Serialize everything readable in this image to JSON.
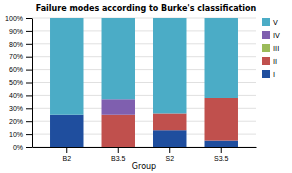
{
  "chart_data": {
    "type": "bar",
    "stacked": true,
    "title": "Failure modes according to Burke's classification",
    "x_label": "Group",
    "categories": [
      "B2",
      "B3.5",
      "S2",
      "S3.5"
    ],
    "series": [
      {
        "name": "I",
        "color": "#1f4e9e",
        "values": [
          25,
          0,
          13,
          5
        ]
      },
      {
        "name": "II",
        "color": "#c0504d",
        "values": [
          0,
          25,
          13,
          33
        ]
      },
      {
        "name": "III",
        "color": "#9bbb59",
        "values": [
          0,
          0,
          0,
          0
        ]
      },
      {
        "name": "IV",
        "color": "#7f5faf",
        "values": [
          0,
          12,
          0,
          0
        ]
      },
      {
        "name": "V",
        "color": "#4bacc6",
        "values": [
          75,
          63,
          74,
          62
        ]
      }
    ],
    "ylim": [
      0,
      100
    ],
    "yticks": [
      {
        "value": 0,
        "label": "0%"
      },
      {
        "value": 10,
        "label": "10%"
      },
      {
        "value": 20,
        "label": "20%"
      },
      {
        "value": 30,
        "label": "30%"
      },
      {
        "value": 40,
        "label": "40%"
      },
      {
        "value": 50,
        "label": "50%"
      },
      {
        "value": 60,
        "label": "60%"
      },
      {
        "value": 70,
        "label": "70%"
      },
      {
        "value": 80,
        "label": "80%"
      },
      {
        "value": 90,
        "label": "90%"
      },
      {
        "value": 100,
        "label": "100%"
      }
    ],
    "grid": true,
    "legend": "right"
  }
}
